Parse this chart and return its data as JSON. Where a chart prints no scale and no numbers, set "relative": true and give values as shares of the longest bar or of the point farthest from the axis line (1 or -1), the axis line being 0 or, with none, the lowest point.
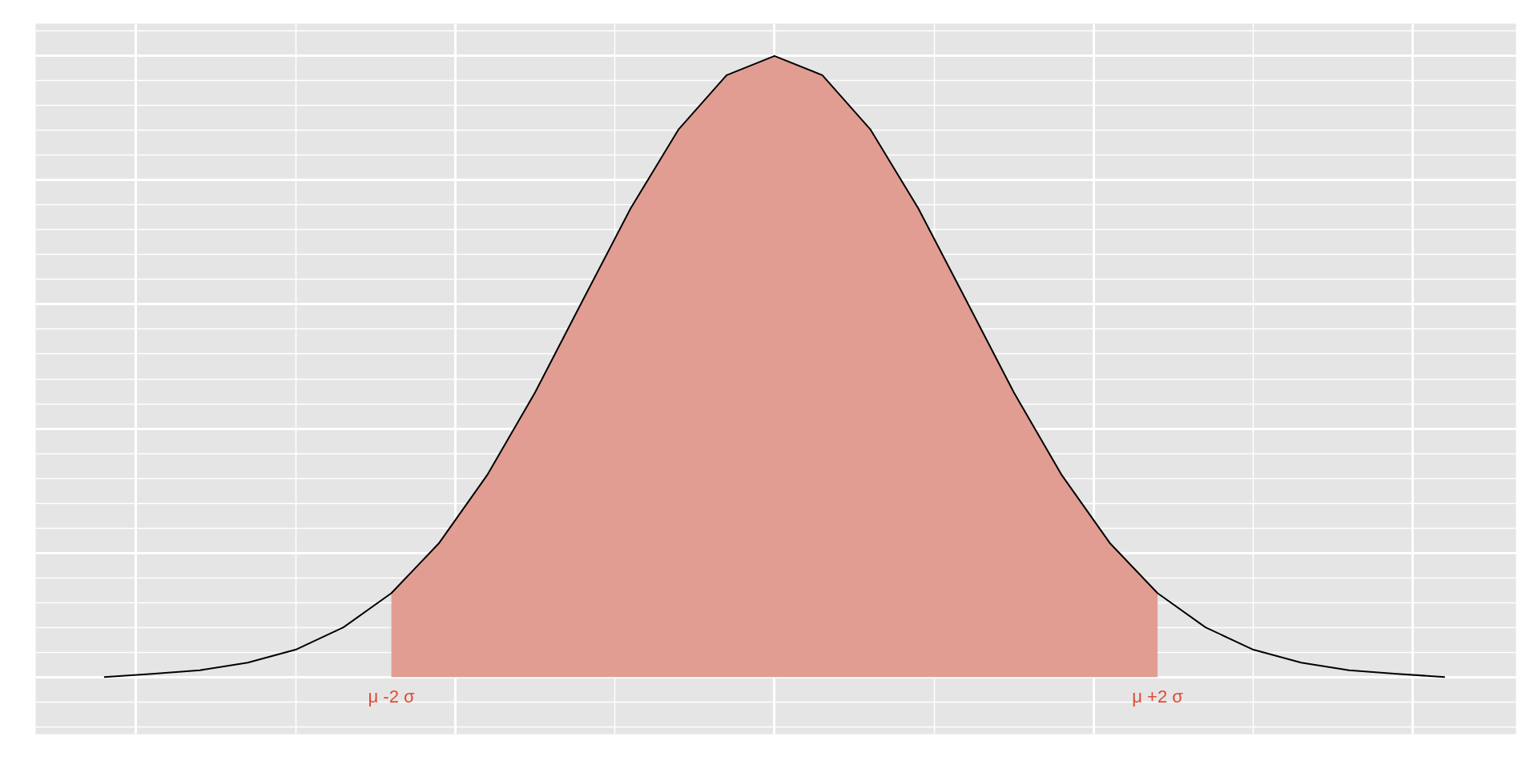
{
  "chart_data": {
    "type": "line",
    "relative": true,
    "grid": true,
    "categories": [
      null,
      null,
      null,
      null,
      null,
      null,
      null,
      null,
      null,
      null,
      null,
      null,
      null,
      null,
      null,
      null,
      null,
      null,
      null,
      null,
      null,
      null,
      null,
      null,
      null,
      null,
      null,
      null,
      null
    ],
    "series": [
      {
        "type": "area",
        "color": "#e0998d",
        "values": [
          null,
          null,
          null,
          null,
          null,
          null,
          0.135,
          0.216,
          0.325,
          0.458,
          0.607,
          0.755,
          0.882,
          0.969,
          1,
          0.969,
          0.882,
          0.755,
          0.607,
          0.458,
          0.325,
          0.216,
          0.135,
          null,
          null,
          null,
          null,
          null,
          null
        ]
      },
      {
        "color": "#000000",
        "values": [
          0,
          0.005,
          0.011,
          0.023,
          0.044,
          0.08,
          0.135,
          0.216,
          0.325,
          0.458,
          0.607,
          0.755,
          0.882,
          0.969,
          1,
          0.969,
          0.882,
          0.755,
          0.607,
          0.458,
          0.325,
          0.216,
          0.135,
          0.08,
          0.044,
          0.023,
          0.011,
          0.005,
          0
        ]
      }
    ],
    "annotations": [
      "μ -2 σ",
      "μ +2 σ"
    ]
  }
}
